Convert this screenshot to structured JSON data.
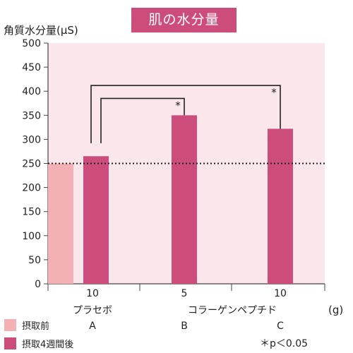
{
  "title": "肌の水分量",
  "chart_data": {
    "type": "bar",
    "ylabel": "角質水分量(μS)",
    "ylim": [
      0,
      500
    ],
    "yticks": [
      0,
      50,
      100,
      150,
      200,
      250,
      300,
      350,
      400,
      450,
      500
    ],
    "reference_line": 250,
    "groups": [
      {
        "dose": "10",
        "name": "プラセボ",
        "letter": "A"
      },
      {
        "dose": "5",
        "name": "コラーゲンペプチド",
        "letter": "B"
      },
      {
        "dose": "10",
        "name": "",
        "letter": "C"
      }
    ],
    "bars": [
      {
        "group": 0,
        "series": 0,
        "value": 250
      },
      {
        "group": 0,
        "series": 1,
        "value": 265
      },
      {
        "group": 1,
        "series": 1,
        "value": 350
      },
      {
        "group": 2,
        "series": 1,
        "value": 322
      }
    ],
    "series": [
      {
        "name": "摂取前",
        "color": "#f4b1b5"
      },
      {
        "name": "摂取4週間後",
        "color": "#cc4d7b"
      }
    ],
    "significance": [
      {
        "from": "A",
        "to": "B",
        "mark": "*"
      },
      {
        "from": "A",
        "to": "C",
        "mark": "*"
      }
    ],
    "unit_label": "(g)",
    "note": "＊p＜0.05",
    "colors": {
      "background": "#fbe6ec",
      "accent": "#cc4d7b"
    }
  }
}
